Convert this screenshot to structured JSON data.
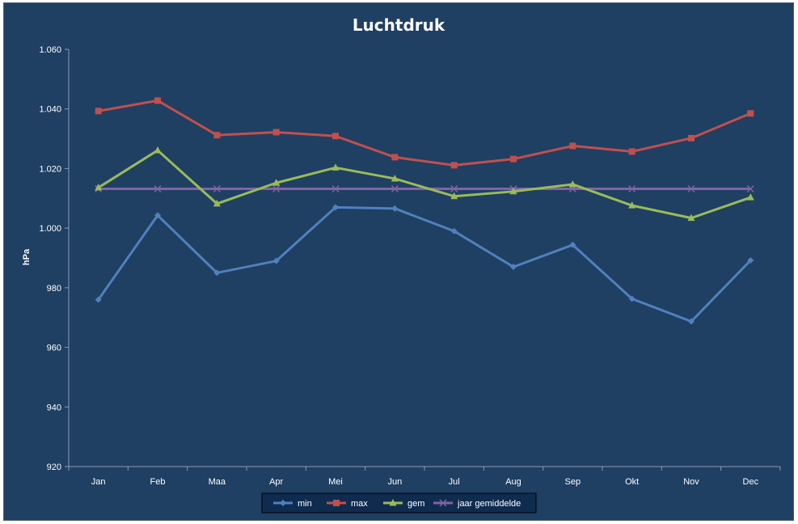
{
  "chart_data": {
    "type": "line",
    "title": "Luchtdruk",
    "xlabel": "",
    "ylabel": "hPa",
    "ylim": [
      920,
      1060
    ],
    "ytick_values": [
      920,
      940,
      960,
      980,
      1000,
      1020,
      1040,
      1060
    ],
    "ytick_labels": [
      "920",
      "940",
      "960",
      "980",
      "1.000",
      "1.020",
      "1.040",
      "1.060"
    ],
    "categories": [
      "Jan",
      "Feb",
      "Maa",
      "Apr",
      "Mei",
      "Jun",
      "Jul",
      "Aug",
      "Sep",
      "Okt",
      "Nov",
      "Dec"
    ],
    "grid": false,
    "legend": "bottom",
    "series": [
      {
        "name": "min",
        "color": "#4f81bd",
        "marker": "diamond",
        "values": [
          976,
          1004.3,
          985,
          989,
          1007,
          1006.6,
          999,
          987,
          994.4,
          976.3,
          968.7,
          989.2
        ]
      },
      {
        "name": "max",
        "color": "#c0504d",
        "marker": "square",
        "values": [
          1039.3,
          1042.8,
          1031.2,
          1032.2,
          1030.9,
          1023.8,
          1021.1,
          1023.2,
          1027.6,
          1025.7,
          1030.2,
          1038.5
        ]
      },
      {
        "name": "gem",
        "color": "#9bbb59",
        "marker": "triangle",
        "values": [
          1013.6,
          1026.1,
          1008.2,
          1015.2,
          1020.3,
          1016.6,
          1010.7,
          1012.3,
          1014.7,
          1007.6,
          1003.4,
          1010.3
        ]
      },
      {
        "name": "jaar gemiddelde",
        "color": "#8064a2",
        "marker": "x",
        "values": [
          1013.2,
          1013.2,
          1013.2,
          1013.2,
          1013.2,
          1013.2,
          1013.2,
          1013.2,
          1013.2,
          1013.2,
          1013.2,
          1013.2
        ]
      }
    ]
  }
}
